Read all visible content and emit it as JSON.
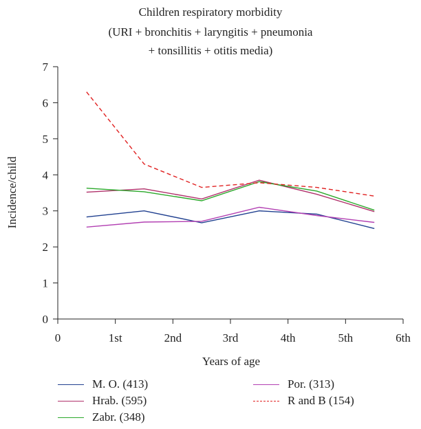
{
  "chart_data": {
    "type": "line",
    "title": "Children respiratory morbidity",
    "subtitle_lines": [
      "(URI + bronchitis + laryngitis + pneumonia",
      "+ tonsillitis + otitis media)"
    ],
    "xlabel": "Years of age",
    "ylabel": "Incidence/child",
    "xlim": [
      0,
      6
    ],
    "ylim": [
      0,
      7
    ],
    "x_tick_labels": [
      "0",
      "1st",
      "2nd",
      "3rd",
      "4th",
      "5th",
      "6th"
    ],
    "y_ticks": [
      0,
      1,
      2,
      3,
      4,
      5,
      6,
      7
    ],
    "grid": false,
    "legend_position": "bottom",
    "x": [
      0.5,
      1.5,
      2.5,
      3.5,
      4.5,
      5.5
    ],
    "series": [
      {
        "name": "M. O. (413)",
        "color": "#1f3f8f",
        "style": "solid",
        "values": [
          2.83,
          3.0,
          2.67,
          3.0,
          2.91,
          2.51
        ]
      },
      {
        "name": "Hrab. (595)",
        "color": "#b0306a",
        "style": "solid",
        "values": [
          3.52,
          3.61,
          3.33,
          3.85,
          3.46,
          2.98
        ]
      },
      {
        "name": "Zabr. (348)",
        "color": "#2aa82a",
        "style": "solid",
        "values": [
          3.63,
          3.53,
          3.28,
          3.81,
          3.55,
          3.02
        ]
      },
      {
        "name": "Por. (313)",
        "color": "#b23fb2",
        "style": "solid",
        "values": [
          2.55,
          2.69,
          2.71,
          3.1,
          2.87,
          2.68
        ]
      },
      {
        "name": "R and B (154)",
        "color": "#e02020",
        "style": "dashed",
        "values": [
          6.3,
          4.3,
          3.65,
          3.78,
          3.65,
          3.41
        ]
      }
    ]
  }
}
